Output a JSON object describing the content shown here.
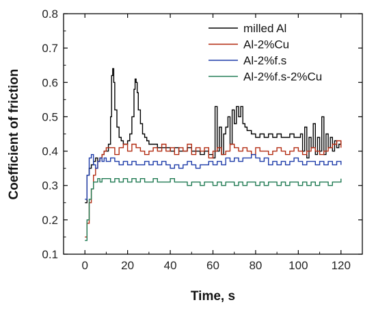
{
  "chart_data": {
    "type": "line",
    "title": "",
    "xlabel": "Time, s",
    "ylabel": "Coefficient of friction",
    "xlim": [
      -10,
      130
    ],
    "ylim": [
      0.1,
      0.8
    ],
    "xticks": [
      0,
      20,
      40,
      60,
      80,
      100,
      120
    ],
    "yticks": [
      0.1,
      0.2,
      0.3,
      0.4,
      0.5,
      0.6,
      0.7,
      0.8
    ],
    "grid": false,
    "legend_position": "top-right",
    "series": [
      {
        "name": "milled Al",
        "color": "#000000",
        "x": [
          0,
          1,
          2,
          3,
          4,
          5,
          6,
          7,
          8,
          9,
          10,
          11,
          12,
          12.5,
          13,
          13.5,
          14,
          15,
          16,
          17,
          18,
          19,
          20,
          21,
          22,
          23,
          23.5,
          24,
          24.5,
          25,
          26,
          27,
          28,
          29,
          30,
          32,
          34,
          36,
          38,
          40,
          42,
          44,
          46,
          48,
          50,
          52,
          54,
          56,
          58,
          60,
          61,
          62,
          63,
          64,
          65,
          66,
          67,
          68,
          69,
          70,
          71,
          72,
          73,
          74,
          75,
          76,
          78,
          80,
          82,
          84,
          86,
          88,
          90,
          92,
          94,
          96,
          98,
          100,
          101,
          102,
          103,
          104,
          105,
          106,
          107,
          108,
          109,
          110,
          111,
          112,
          113,
          114,
          115,
          116,
          117,
          118,
          119,
          120
        ],
        "y": [
          0.25,
          0.33,
          0.35,
          0.36,
          0.37,
          0.38,
          0.37,
          0.38,
          0.39,
          0.4,
          0.4,
          0.42,
          0.5,
          0.62,
          0.64,
          0.6,
          0.52,
          0.47,
          0.44,
          0.43,
          0.42,
          0.42,
          0.43,
          0.45,
          0.5,
          0.58,
          0.61,
          0.6,
          0.57,
          0.52,
          0.48,
          0.45,
          0.44,
          0.43,
          0.42,
          0.42,
          0.41,
          0.41,
          0.41,
          0.4,
          0.41,
          0.4,
          0.4,
          0.41,
          0.4,
          0.4,
          0.39,
          0.4,
          0.39,
          0.38,
          0.53,
          0.4,
          0.47,
          0.39,
          0.45,
          0.47,
          0.5,
          0.42,
          0.52,
          0.48,
          0.53,
          0.5,
          0.53,
          0.48,
          0.47,
          0.46,
          0.45,
          0.44,
          0.45,
          0.44,
          0.45,
          0.44,
          0.45,
          0.44,
          0.44,
          0.45,
          0.44,
          0.44,
          0.45,
          0.4,
          0.47,
          0.38,
          0.44,
          0.41,
          0.48,
          0.39,
          0.44,
          0.4,
          0.5,
          0.39,
          0.45,
          0.41,
          0.44,
          0.4,
          0.43,
          0.41,
          0.42,
          0.43
        ]
      },
      {
        "name": "Al-2%Cu",
        "color": "#b22a10",
        "x": [
          0,
          1,
          2,
          3,
          4,
          5,
          6,
          7,
          8,
          9,
          10,
          12,
          14,
          16,
          18,
          20,
          22,
          24,
          26,
          28,
          30,
          32,
          34,
          36,
          38,
          40,
          42,
          44,
          46,
          48,
          50,
          52,
          54,
          56,
          58,
          60,
          62,
          64,
          66,
          68,
          70,
          72,
          74,
          76,
          78,
          80,
          82,
          84,
          86,
          88,
          90,
          92,
          94,
          96,
          98,
          100,
          102,
          104,
          106,
          108,
          110,
          112,
          114,
          116,
          118,
          120
        ],
        "y": [
          0.15,
          0.19,
          0.25,
          0.29,
          0.33,
          0.35,
          0.37,
          0.38,
          0.39,
          0.4,
          0.41,
          0.41,
          0.39,
          0.41,
          0.42,
          0.4,
          0.42,
          0.41,
          0.4,
          0.39,
          0.4,
          0.41,
          0.4,
          0.42,
          0.4,
          0.41,
          0.39,
          0.41,
          0.4,
          0.42,
          0.39,
          0.41,
          0.4,
          0.41,
          0.38,
          0.4,
          0.41,
          0.39,
          0.4,
          0.42,
          0.41,
          0.4,
          0.41,
          0.4,
          0.39,
          0.41,
          0.4,
          0.4,
          0.39,
          0.4,
          0.41,
          0.4,
          0.39,
          0.4,
          0.41,
          0.4,
          0.39,
          0.4,
          0.41,
          0.4,
          0.39,
          0.4,
          0.41,
          0.42,
          0.43,
          0.41
        ]
      },
      {
        "name": "Al-2%f.s",
        "color": "#1c3aa8",
        "x": [
          0,
          1,
          2,
          3,
          4,
          5,
          6,
          7,
          8,
          9,
          10,
          12,
          14,
          16,
          18,
          20,
          22,
          24,
          26,
          28,
          30,
          32,
          34,
          36,
          38,
          40,
          42,
          44,
          46,
          48,
          50,
          52,
          54,
          56,
          58,
          60,
          62,
          64,
          66,
          68,
          70,
          72,
          74,
          76,
          78,
          80,
          82,
          84,
          86,
          88,
          90,
          92,
          94,
          96,
          98,
          100,
          102,
          104,
          106,
          108,
          110,
          112,
          114,
          116,
          118,
          120
        ],
        "y": [
          0.26,
          0.33,
          0.38,
          0.39,
          0.36,
          0.35,
          0.37,
          0.38,
          0.37,
          0.38,
          0.37,
          0.38,
          0.37,
          0.36,
          0.37,
          0.36,
          0.37,
          0.36,
          0.36,
          0.37,
          0.36,
          0.37,
          0.36,
          0.37,
          0.36,
          0.35,
          0.36,
          0.35,
          0.36,
          0.37,
          0.36,
          0.35,
          0.36,
          0.36,
          0.37,
          0.36,
          0.37,
          0.36,
          0.38,
          0.37,
          0.38,
          0.37,
          0.38,
          0.38,
          0.39,
          0.38,
          0.37,
          0.38,
          0.36,
          0.37,
          0.36,
          0.37,
          0.36,
          0.37,
          0.38,
          0.37,
          0.36,
          0.37,
          0.37,
          0.36,
          0.37,
          0.36,
          0.37,
          0.36,
          0.37,
          0.36
        ]
      },
      {
        "name": "Al-2%f.s-2%Cu",
        "color": "#1f7a52",
        "x": [
          0,
          1,
          2,
          3,
          4,
          5,
          6,
          7,
          8,
          10,
          12,
          14,
          16,
          18,
          20,
          22,
          24,
          26,
          28,
          30,
          32,
          34,
          36,
          38,
          40,
          42,
          44,
          46,
          48,
          50,
          52,
          54,
          56,
          58,
          60,
          62,
          64,
          66,
          68,
          70,
          72,
          74,
          76,
          78,
          80,
          82,
          84,
          86,
          88,
          90,
          92,
          94,
          96,
          98,
          100,
          102,
          104,
          106,
          108,
          110,
          112,
          114,
          116,
          118,
          120
        ],
        "y": [
          0.14,
          0.2,
          0.26,
          0.29,
          0.31,
          0.31,
          0.32,
          0.31,
          0.32,
          0.32,
          0.31,
          0.32,
          0.31,
          0.32,
          0.31,
          0.32,
          0.31,
          0.32,
          0.31,
          0.31,
          0.32,
          0.31,
          0.31,
          0.31,
          0.32,
          0.31,
          0.31,
          0.31,
          0.3,
          0.31,
          0.31,
          0.3,
          0.31,
          0.31,
          0.3,
          0.31,
          0.3,
          0.31,
          0.31,
          0.3,
          0.31,
          0.3,
          0.31,
          0.31,
          0.3,
          0.31,
          0.3,
          0.31,
          0.31,
          0.3,
          0.31,
          0.3,
          0.31,
          0.31,
          0.3,
          0.31,
          0.3,
          0.31,
          0.3,
          0.31,
          0.31,
          0.3,
          0.31,
          0.31,
          0.32
        ]
      }
    ]
  }
}
